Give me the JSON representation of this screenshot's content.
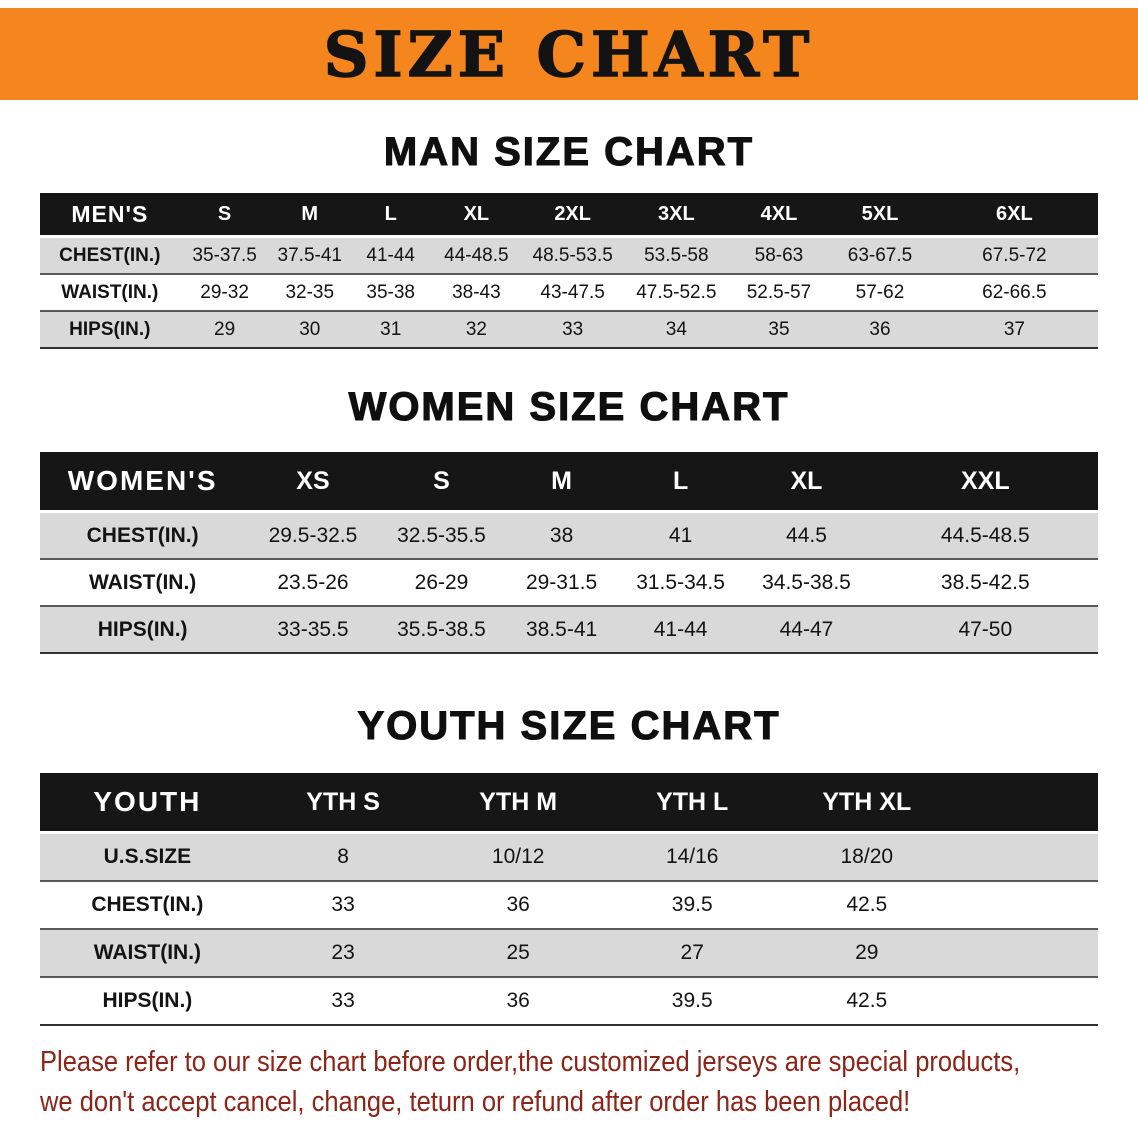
{
  "banner": {
    "title": "SIZE CHART",
    "background_color": "#F4861D",
    "title_color": "#131313"
  },
  "sections": [
    {
      "id": "men",
      "title": "MAN SIZE CHART",
      "table": {
        "header": [
          "MEN'S",
          "S",
          "M",
          "L",
          "XL",
          "2XL",
          "3XL",
          "4XL",
          "5XL",
          "6XL"
        ],
        "rows": [
          [
            "CHEST(IN.)",
            "35-37.5",
            "37.5-41",
            "41-44",
            "44-48.5",
            "48.5-53.5",
            "53.5-58",
            "58-63",
            "63-67.5",
            "67.5-72"
          ],
          [
            "WAIST(IN.)",
            "29-32",
            "32-35",
            "35-38",
            "38-43",
            "43-47.5",
            "47.5-52.5",
            "52.5-57",
            "57-62",
            "62-66.5"
          ],
          [
            "HIPS(IN.)",
            "29",
            "30",
            "31",
            "32",
            "33",
            "34",
            "35",
            "36",
            "37"
          ]
        ]
      }
    },
    {
      "id": "women",
      "title": "WOMEN SIZE CHART",
      "table": {
        "header": [
          "WOMEN'S",
          "XS",
          "S",
          "M",
          "L",
          "XL",
          "XXL"
        ],
        "rows": [
          [
            "CHEST(IN.)",
            "29.5-32.5",
            "32.5-35.5",
            "38",
            "41",
            "44.5",
            "44.5-48.5"
          ],
          [
            "WAIST(IN.)",
            "23.5-26",
            "26-29",
            "29-31.5",
            "31.5-34.5",
            "34.5-38.5",
            "38.5-42.5"
          ],
          [
            "HIPS(IN.)",
            "33-35.5",
            "35.5-38.5",
            "38.5-41",
            "41-44",
            "44-47",
            "47-50"
          ]
        ]
      }
    },
    {
      "id": "youth",
      "title": "YOUTH SIZE CHART",
      "table": {
        "header": [
          "YOUTH",
          "YTH S",
          "YTH M",
          "YTH L",
          "YTH XL"
        ],
        "rows": [
          [
            "U.S.SIZE",
            "8",
            "10/12",
            "14/16",
            "18/20"
          ],
          [
            "CHEST(IN.)",
            "33",
            "36",
            "39.5",
            "42.5"
          ],
          [
            "WAIST(IN.)",
            "23",
            "25",
            "27",
            "29"
          ],
          [
            "HIPS(IN.)",
            "33",
            "36",
            "39.5",
            "42.5"
          ]
        ]
      }
    }
  ],
  "footer": {
    "lines": [
      "Please refer to our size chart before order,the customized jerseys are special products,",
      "we don't accept cancel, change, teturn or refund after order has been placed!"
    ],
    "text_color": "#8E2317"
  }
}
